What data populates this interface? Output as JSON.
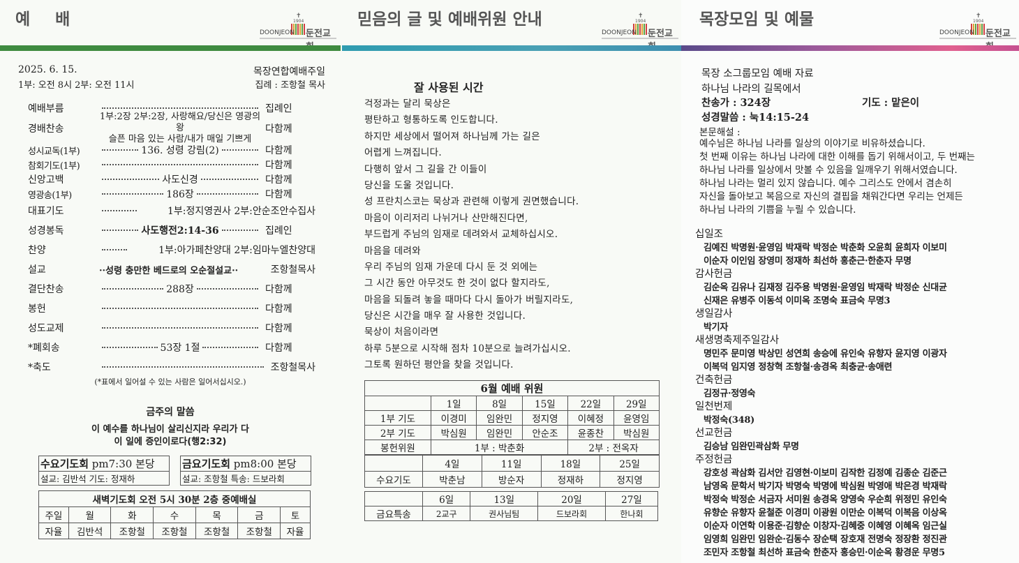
{
  "logo": {
    "year": "1904",
    "en": "DOONJEON",
    "ko": "둔전교회"
  },
  "colors": {
    "band1": "#3f8b40",
    "band2": "#2f9cb0",
    "band3": "#e0608f"
  },
  "worship": {
    "title": "예 배",
    "date": "2025. 6. 15.",
    "times": "1부: 오전 8시   2부: 오전 11시",
    "occasion": "목장연합예배주일",
    "officiant": "집례 : 조항철 목사",
    "order": [
      {
        "label": "예배부름",
        "content": "",
        "leader": "집례인"
      },
      {
        "label": "경배찬송",
        "content": "1부:2장 2부:2장, 사랑해요/당신은 영광의 왕",
        "content2": "슬픈 마음 있는 사람/내가 매일 기쁘게",
        "leader": "다함께"
      },
      {
        "label": "성시교독(1부)",
        "content": "136. 성령 강림(2)",
        "leader": "다함께"
      },
      {
        "label": "참회기도(1부)",
        "content": "",
        "leader": "다함께"
      },
      {
        "label": "신앙고백",
        "content": "사도신경",
        "leader": "다함께"
      },
      {
        "label": "영광송(1부)",
        "content": "186장",
        "leader": "다함께"
      },
      {
        "label": "대표기도",
        "content": "1부:정지영권사 2부:안순조안수집사",
        "leader": ""
      },
      {
        "label": "성경봉독",
        "content": "사도행전2:14-36",
        "leader": "집례인"
      },
      {
        "label": "찬양",
        "content": "1부:아가페찬양대 2부:임마누엘찬양대",
        "leader": ""
      },
      {
        "label": "설교",
        "content": "··성령 충만한 베드로의 오순절설교··",
        "leader": "조항철목사"
      },
      {
        "label": "결단찬송",
        "content": "288장",
        "leader": "다함께"
      },
      {
        "label": "봉헌",
        "content": "",
        "leader": "다함께"
      },
      {
        "label": "성도교제",
        "content": "",
        "leader": "다함께"
      },
      {
        "label": "*폐회송",
        "content": "53장 1절",
        "leader": "다함께"
      },
      {
        "label": "*축도",
        "content": "",
        "leader": "조항철목사"
      }
    ],
    "note": "(*표에서 일어설 수 있는 사람은 일어서십시오.)",
    "verse_title": "금주의 말씀",
    "verse_line1": "이 예수를 하나님이 살리신지라 우리가 다",
    "verse_line2": "이 일에 증인이로다(행2:32)",
    "wed": {
      "title": "수요기도회",
      "time": "pm7:30 본당",
      "detail": "설교: 김반석   기도: 정재하"
    },
    "fri": {
      "title": "금요기도회",
      "time": "pm8:00 본당",
      "detail": "설교: 조항철   특송: 드보라회"
    },
    "dawn": {
      "title": "새벽기도회 오전 5시 30분 2층 중예배실",
      "days": [
        "주일",
        "월",
        "화",
        "수",
        "목",
        "금",
        "토"
      ],
      "leaders": [
        "자율",
        "김반석",
        "조항철",
        "조항철",
        "조항철",
        "조항철",
        "자율"
      ]
    }
  },
  "meditation": {
    "title": "믿음의 글 및 예배위원 안내",
    "heading": "잘 사용된 시간",
    "lines": [
      "걱정과는 달리 묵상은",
      "평탄하고 형통하도록 인도합니다.",
      "하지만 세상에서 떨어져 하나님께 가는 길은",
      "어렵게 느껴집니다.",
      "다행히 앞서 그 길을 간 이들이",
      "당신을 도울 것입니다.",
      "성 프란치스코는 묵상과 관련해 이렇게 권면했습니다.",
      "마음이 이리저리 나뉘거나 산만해진다면,",
      "부드럽게 주님의 임재로 데려와서 교체하십시오.",
      "마음을 데려와",
      "우리 주님의 임재 가운데 다시 둔 것 외에는",
      "그 시간 동안 아무것도 한 것이 없다 할지라도,",
      "마음을 되돌려 놓을 때마다 다시 돌아가 버릴지라도,",
      "당신은 시간을 매우 잘 사용한 것입니다.",
      "묵상이 처음이라면",
      "하루 5분으로 시작해 점차 10분으로 늘려가십시오.",
      "그토록 원하던 평안을 찾을 것입니다."
    ],
    "servers": {
      "title": "6월 예배 위원",
      "dates": [
        "1일",
        "8일",
        "15일",
        "22일",
        "29일"
      ],
      "prayer1_label": "1부 기도",
      "prayer1": [
        "이경미",
        "임완민",
        "정지영",
        "이혜정",
        "윤영임"
      ],
      "prayer2_label": "2부 기도",
      "prayer2": [
        "박심원",
        "임완민",
        "안순조",
        "윤종찬",
        "박심원"
      ],
      "offering_label": "봉헌위원",
      "offering1": "1부 : 박춘화",
      "offering2": "2부 : 전옥자"
    },
    "wed": {
      "label": "수요기도",
      "dates": [
        "4일",
        "11일",
        "18일",
        "25일"
      ],
      "names": [
        "박춘남",
        "방순자",
        "정재하",
        "정지영"
      ]
    },
    "fri": {
      "label": "금요특송",
      "dates": [
        "6일",
        "13일",
        "20일",
        "27일"
      ],
      "names": [
        "2교구",
        "권사님팀",
        "드보라회",
        "한나회"
      ]
    }
  },
  "group": {
    "title": "목장모임 및 예물",
    "line1": "목장 소그룹모임 예배 자료",
    "line2": "하나님 나라의 길목에서",
    "hymn": "찬송가 : 324장",
    "prayer": "기도 : 맡은이",
    "scripture": "성경말씀 : 눅14:15-24",
    "exp_label": "본문해설 :",
    "exp": [
      "예수님은 하나님 나라를 일상의 이야기로 비유하셨습니다.",
      "첫 번째 이유는 하나님 나라에 대한 이해를 돕기 위해서이고, 두 번째는",
      "하나님 나라를 일상에서 맛볼 수 있음을 일깨우기 위해서였습니다.",
      "하나님 나라는 멀리 있지 않습니다. 예수 그리스도 안에서 겸손히",
      "자신을 돌아보고 복음으로 자신의 결핍을 채워간다면 우리는 언제든",
      "하나님 나라의 기쁨을 누릴 수 있습니다."
    ],
    "offerings": [
      {
        "title": "십일조",
        "lines": [
          "김예진 박명원·윤영임 박재락 박정순 박춘화 오윤희 윤희자 이보미",
          "이순자 이인임 장영미 정재하 최선하 홍춘근·한춘자 무명"
        ]
      },
      {
        "title": "감사헌금",
        "lines": [
          "김순옥 김유나 김재정 김주용 박명원·윤영임 박재락 박정순 신대균",
          "신재은 유병주 이동석 이미옥 조명숙 표금숙 무명3"
        ]
      },
      {
        "title": "생일감사",
        "lines": [
          "박기자"
        ]
      },
      {
        "title": "새생명축제주일감사",
        "lines": [
          "명민주 문미영 박상민 성연희 송승에 유인숙 유향자 윤지영 이광자",
          "이복덕 임지영 정창혁 조항철·송경옥 최충균·송애련"
        ]
      },
      {
        "title": "건축헌금",
        "lines": [
          "김정규·정영숙"
        ]
      },
      {
        "title": "일천번제",
        "lines": [
          "박정숙(348)"
        ]
      },
      {
        "title": "선교헌금",
        "lines": [
          "김승남 임완민곽삼화 무명"
        ]
      },
      {
        "title": "주정헌금",
        "lines": [
          "강호성 곽삼화 김서안 김영현·이보미 김작한 김정예 김종순 김준근",
          "남영옥 문학서 박기자 박명숙 박명에 박심원 박영애 박은경 박재락",
          "박정숙 박정순 서금자 서미원 송경옥 양영숙 우순희 위정민 유인숙",
          "유향순 유향자 윤철준 이경미 이광원 이만순 이복덕 이복음 이상옥",
          "이순자 이연학 이용준·김향순 이창자·김혜중 이혜영 이혜옥 임근실",
          "임영희 임완민 임완순·김동수 장순택 장호재 전명숙 정장환 정진관",
          "조민자 조항철 최선하 표금숙 한춘자 홍승민·이순옥 황경운 무명5"
        ]
      }
    ]
  }
}
